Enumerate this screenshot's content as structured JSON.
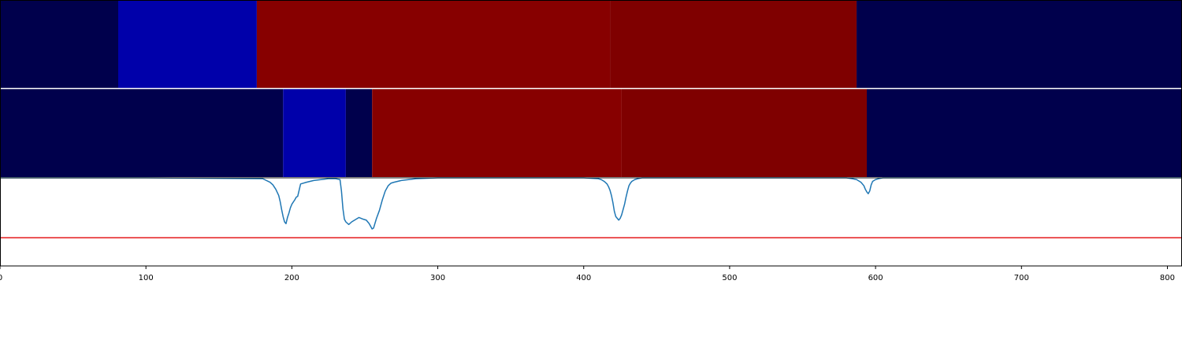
{
  "chart_data": {
    "type": "heatmap",
    "colors": {
      "dark_navy": "#00004c",
      "blue": "#0000aa",
      "red": "#870000",
      "dark_red": "#7f0000",
      "line": "#1f77b4",
      "threshold": "#e41a1c",
      "frame": "#000000",
      "separator": "#ffffff"
    },
    "xlim": [
      0,
      810
    ],
    "x_ticks": [
      0,
      100,
      200,
      300,
      400,
      500,
      600,
      700,
      800
    ],
    "x_tick_labels": [
      "0",
      "100",
      "200",
      "300",
      "400",
      "500",
      "600",
      "700",
      "800"
    ],
    "heatmap_rows": [
      {
        "segments": [
          {
            "start": 0,
            "end": 81,
            "color": "dark_navy"
          },
          {
            "start": 81,
            "end": 176,
            "color": "blue"
          },
          {
            "start": 176,
            "end": 418,
            "color": "red"
          },
          {
            "start": 418,
            "end": 587,
            "color": "dark_red"
          },
          {
            "start": 587,
            "end": 810,
            "color": "dark_navy"
          }
        ]
      },
      {
        "segments": [
          {
            "start": 0,
            "end": 194,
            "color": "dark_navy"
          },
          {
            "start": 194,
            "end": 237,
            "color": "blue"
          },
          {
            "start": 237,
            "end": 255,
            "color": "dark_navy"
          },
          {
            "start": 255,
            "end": 426,
            "color": "red"
          },
          {
            "start": 426,
            "end": 594,
            "color": "dark_red"
          },
          {
            "start": 594,
            "end": 810,
            "color": "dark_navy"
          }
        ]
      }
    ],
    "line_panel": {
      "ylim": [
        -1.0,
        0.0
      ],
      "threshold": -0.68,
      "series": [
        {
          "x": [
            0,
            100,
            180,
            185,
            187,
            189,
            191,
            192,
            193,
            194,
            195,
            196,
            197,
            198,
            199,
            200,
            202,
            203,
            204,
            206,
            210,
            215,
            220,
            225,
            230,
            233,
            234,
            235,
            236,
            237,
            239,
            241,
            243,
            246,
            249,
            251,
            253,
            255,
            256,
            258,
            260,
            262,
            264,
            266,
            268,
            270,
            275,
            285,
            300,
            400,
            410,
            412,
            414,
            416,
            417,
            418,
            419,
            420,
            421,
            422,
            423,
            424,
            425,
            426,
            427,
            428,
            429,
            430,
            431,
            432,
            433,
            435,
            437,
            440,
            450,
            580,
            584,
            587,
            590,
            592,
            593,
            594,
            595,
            596,
            597,
            598,
            600,
            602,
            605,
            620,
            700,
            810
          ],
          "y": [
            0,
            0,
            -0.01,
            -0.05,
            -0.08,
            -0.13,
            -0.2,
            -0.27,
            -0.36,
            -0.44,
            -0.5,
            -0.52,
            -0.45,
            -0.4,
            -0.34,
            -0.3,
            -0.25,
            -0.22,
            -0.21,
            -0.07,
            -0.05,
            -0.03,
            -0.02,
            -0.01,
            -0.01,
            -0.02,
            -0.15,
            -0.35,
            -0.47,
            -0.5,
            -0.53,
            -0.5,
            -0.48,
            -0.45,
            -0.47,
            -0.48,
            -0.52,
            -0.58,
            -0.57,
            -0.46,
            -0.37,
            -0.25,
            -0.15,
            -0.09,
            -0.06,
            -0.05,
            -0.03,
            -0.01,
            0,
            0,
            -0.01,
            -0.02,
            -0.04,
            -0.07,
            -0.1,
            -0.14,
            -0.2,
            -0.28,
            -0.38,
            -0.44,
            -0.46,
            -0.48,
            -0.46,
            -0.42,
            -0.36,
            -0.3,
            -0.22,
            -0.15,
            -0.09,
            -0.06,
            -0.04,
            -0.02,
            -0.01,
            0,
            0,
            0,
            -0.01,
            -0.02,
            -0.05,
            -0.09,
            -0.13,
            -0.16,
            -0.18,
            -0.15,
            -0.08,
            -0.04,
            -0.02,
            -0.01,
            0,
            0,
            0,
            0
          ]
        }
      ]
    },
    "grid": false,
    "legend": "none"
  }
}
